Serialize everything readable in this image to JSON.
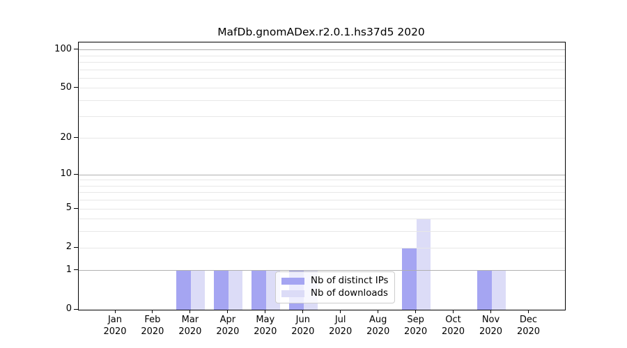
{
  "title": "MafDb.gnomADex.r2.0.1.hs37d5 2020",
  "chart_data": {
    "type": "bar",
    "title": "MafDb.gnomADex.r2.0.1.hs37d5 2020",
    "x_categories": [
      "Jan",
      "Feb",
      "Mar",
      "Apr",
      "May",
      "Jun",
      "Jul",
      "Aug",
      "Sep",
      "Oct",
      "Nov",
      "Dec"
    ],
    "x_year_sublabel": "2020",
    "series": [
      {
        "name": "Nb of distinct IPs",
        "color": "#a5a5f2",
        "values": [
          0,
          0,
          1,
          1,
          1,
          1,
          0,
          0,
          2,
          0,
          1,
          0
        ]
      },
      {
        "name": "Nb of downloads",
        "color": "#dcdcf7",
        "values": [
          0,
          0,
          1,
          1,
          1,
          1,
          0,
          0,
          4,
          0,
          1,
          0
        ]
      }
    ],
    "y_scale": "log10(1+y)",
    "ylim": [
      0,
      114
    ],
    "y_ticks": [
      0,
      1,
      2,
      5,
      10,
      20,
      50,
      100
    ],
    "y_major_gridlines": [
      1,
      10,
      100
    ],
    "y_minor_gridlines": [
      2,
      3,
      4,
      5,
      6,
      7,
      8,
      9,
      20,
      30,
      40,
      50,
      60,
      70,
      80,
      90
    ],
    "grid": "horizontal, drawn above bars",
    "legend_position": "lower center, inside plot, semi-transparent",
    "xlabel": "",
    "ylabel": ""
  },
  "colors": {
    "background": "#ffffff",
    "axis": "#000000",
    "major_grid": "#b0b0b0",
    "minor_grid": "#e7e7e7",
    "legend_border": "#cccccc"
  }
}
